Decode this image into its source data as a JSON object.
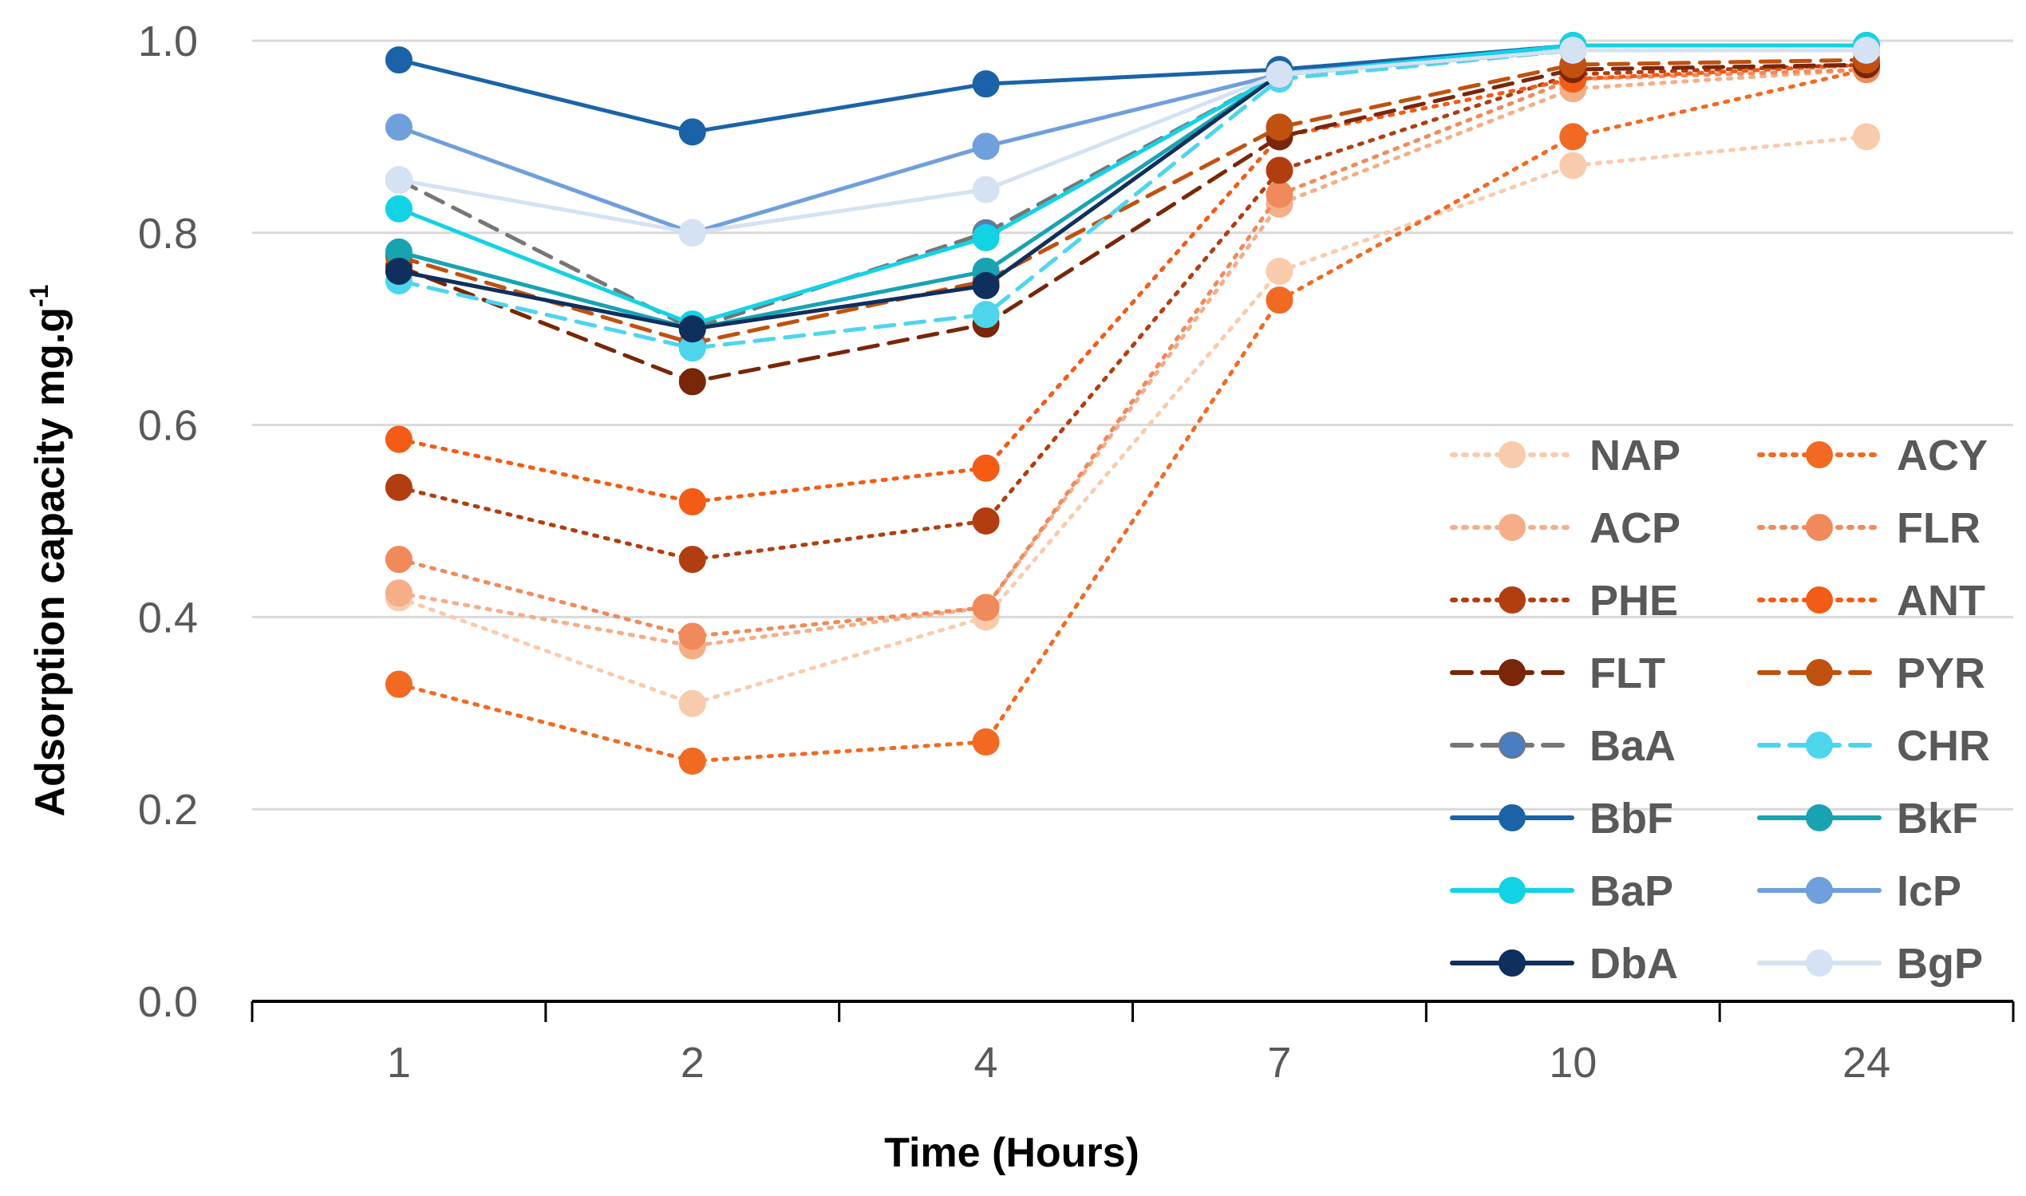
{
  "chart_data": {
    "type": "line",
    "title": "",
    "xlabel": "Time (Hours)",
    "ylabel": "Adsorption capacity mg.g",
    "ylabel_superscript": "-1",
    "categories": [
      "1",
      "2",
      "4",
      "7",
      "10",
      "24"
    ],
    "ylim": [
      0,
      1
    ],
    "yticks": [
      "0.0",
      "0.2",
      "0.4",
      "0.6",
      "0.8",
      "1.0"
    ],
    "grid": true,
    "legend_position": "right",
    "series": [
      {
        "name": "NAP",
        "color": "#f9cbad",
        "dash": "dot",
        "values": [
          0.42,
          0.31,
          0.4,
          0.76,
          0.87,
          0.9
        ]
      },
      {
        "name": "ACY",
        "color": "#f26a22",
        "dash": "dot",
        "values": [
          0.33,
          0.25,
          0.27,
          0.73,
          0.9,
          0.97
        ]
      },
      {
        "name": "ACP",
        "color": "#f5ae88",
        "dash": "dot",
        "values": [
          0.425,
          0.37,
          0.41,
          0.83,
          0.95,
          0.97
        ]
      },
      {
        "name": "FLR",
        "color": "#f08a5a",
        "dash": "dot",
        "values": [
          0.46,
          0.38,
          0.41,
          0.84,
          0.96,
          0.97
        ]
      },
      {
        "name": "PHE",
        "color": "#b23e10",
        "dash": "dot",
        "values": [
          0.535,
          0.46,
          0.5,
          0.865,
          0.965,
          0.975
        ]
      },
      {
        "name": "ANT",
        "color": "#f45b14",
        "dash": "dot",
        "values": [
          0.585,
          0.52,
          0.555,
          0.9,
          0.96,
          0.975
        ]
      },
      {
        "name": "FLT",
        "color": "#7a2608",
        "dash": "dash",
        "values": [
          0.765,
          0.645,
          0.705,
          0.9,
          0.97,
          0.975
        ]
      },
      {
        "name": "PYR",
        "color": "#c0510f",
        "dash": "dash",
        "values": [
          0.775,
          0.685,
          0.75,
          0.91,
          0.975,
          0.98
        ]
      },
      {
        "name": "BaA",
        "color": "#767676",
        "marker": "#4a7ec3",
        "dash": "dash",
        "values": [
          0.855,
          0.7,
          0.8,
          0.965,
          0.99,
          0.99
        ]
      },
      {
        "name": "CHR",
        "color": "#4dd5ee",
        "dash": "dash",
        "values": [
          0.75,
          0.68,
          0.715,
          0.96,
          0.99,
          0.99
        ]
      },
      {
        "name": "BbF",
        "color": "#1b63a8",
        "dash": "solid",
        "values": [
          0.98,
          0.905,
          0.955,
          0.97,
          0.995,
          0.995
        ]
      },
      {
        "name": "BkF",
        "color": "#18a3b3",
        "dash": "solid",
        "values": [
          0.78,
          0.7,
          0.76,
          0.965,
          0.99,
          0.99
        ]
      },
      {
        "name": "BaP",
        "color": "#12d3e6",
        "dash": "solid",
        "values": [
          0.825,
          0.705,
          0.795,
          0.965,
          0.995,
          0.995
        ]
      },
      {
        "name": "IcP",
        "color": "#6f9fdc",
        "dash": "solid",
        "values": [
          0.91,
          0.8,
          0.89,
          0.965,
          0.99,
          0.99
        ]
      },
      {
        "name": "DbA",
        "color": "#0f2f5c",
        "dash": "solid",
        "values": [
          0.76,
          0.7,
          0.745,
          0.965,
          0.99,
          0.99
        ]
      },
      {
        "name": "BgP",
        "color": "#d4e2f4",
        "dash": "solid",
        "values": [
          0.855,
          0.8,
          0.845,
          0.965,
          0.99,
          0.99
        ]
      }
    ]
  }
}
